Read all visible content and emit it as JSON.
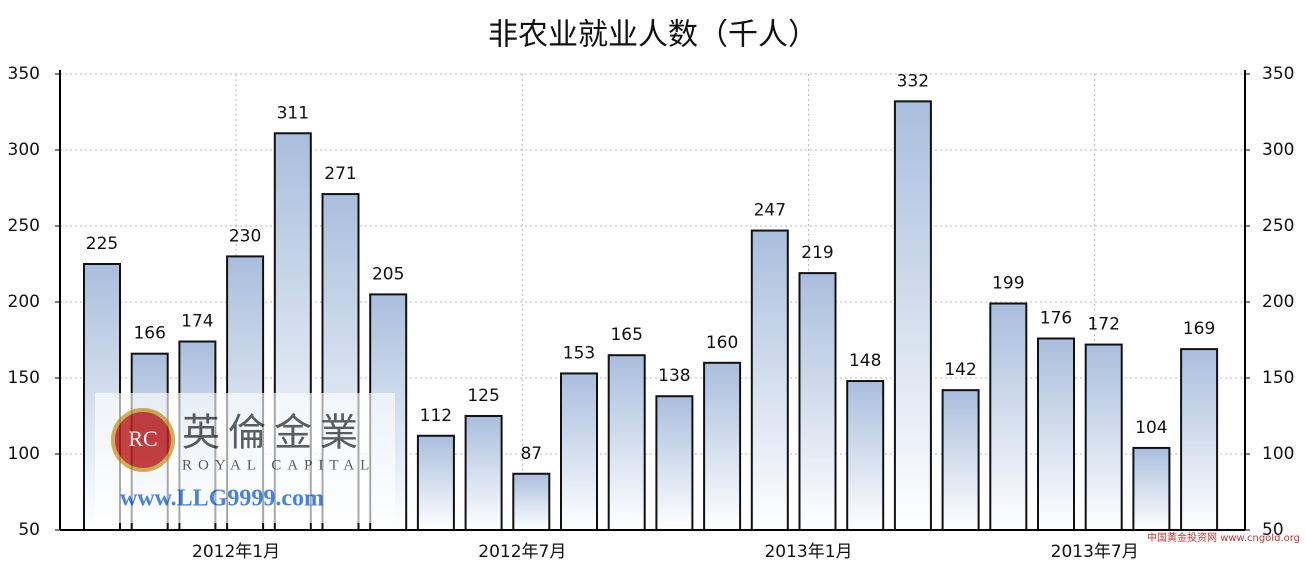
{
  "chart_data": {
    "type": "bar",
    "title": "非农业就业人数（千人）",
    "categories": [
      null,
      null,
      null,
      "2012年1月",
      null,
      null,
      null,
      null,
      null,
      "2012年7月",
      null,
      null,
      null,
      null,
      null,
      "2013年1月",
      null,
      null,
      null,
      null,
      null,
      "2013年7月",
      null,
      null
    ],
    "values": [
      225,
      166,
      174,
      230,
      311,
      271,
      205,
      112,
      125,
      87,
      153,
      165,
      138,
      160,
      247,
      219,
      148,
      332,
      142,
      199,
      176,
      172,
      104,
      169
    ],
    "color": "#a9bedd",
    "ylim": [
      50,
      350
    ],
    "yticks": [
      50,
      100,
      150,
      200,
      250,
      300,
      350
    ],
    "grid": true,
    "watermark": {
      "logo": "RC",
      "name": "英倫金業",
      "subtitle": "ROYAL CAPITAL",
      "url": "www.LLG9999.com",
      "corner": "中国黄金投资网 www.cngold.org"
    }
  }
}
